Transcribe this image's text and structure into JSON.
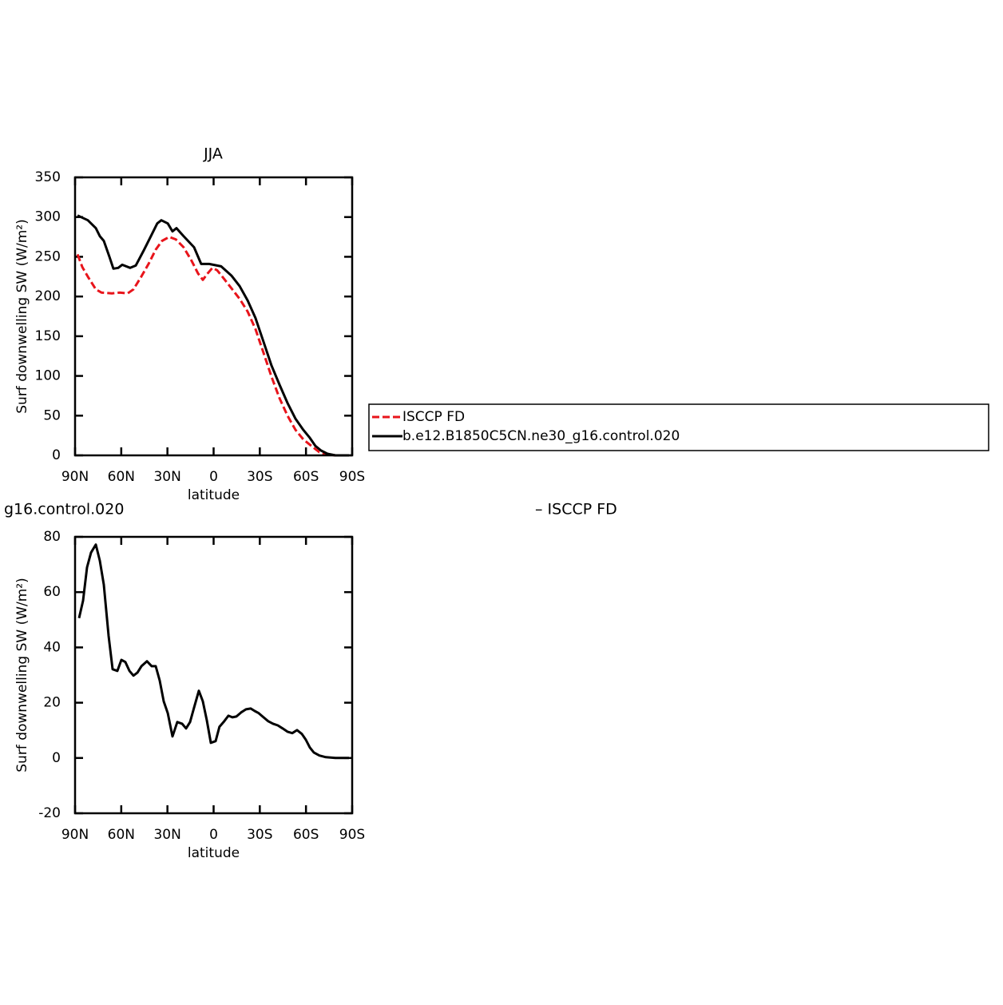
{
  "chart_data": [
    {
      "type": "line",
      "title": "JJA",
      "ylabel": "Surf downwelling SW (W/m²)",
      "xlabel": "latitude",
      "xlim": [
        90,
        -90
      ],
      "xticks": [
        {
          "value": 90,
          "label": "90N"
        },
        {
          "value": 60,
          "label": "60N"
        },
        {
          "value": 30,
          "label": "30N"
        },
        0,
        {
          "value": -30,
          "label": "30S"
        },
        {
          "value": -60,
          "label": "60S"
        },
        {
          "value": -90,
          "label": "90S"
        }
      ],
      "ylim": [
        0,
        350
      ],
      "yticks": [
        0,
        50,
        100,
        150,
        200,
        250,
        300,
        350
      ],
      "legend": true,
      "series": [
        {
          "name": "ISCCP FD",
          "color": "#e8141b",
          "dash": true,
          "x": [
            88.4,
            85.3,
            81.7,
            76.5,
            72.9,
            66.1,
            60.9,
            55.8,
            52.1,
            47,
            42.3,
            37.6,
            33.5,
            28.8,
            24.6,
            19.5,
            14.3,
            10.1,
            7,
            3.9,
            0.8,
            -2.3,
            -6.5,
            -11.7,
            -16.9,
            -22.1,
            -27.2,
            -32.4,
            -37.6,
            -42.8,
            -48,
            -53.2,
            -58.3,
            -63.5,
            -68.7,
            -73.9,
            -79.1,
            -87.9
          ],
          "values": [
            253,
            237,
            225,
            209,
            205,
            204,
            205,
            204,
            209,
            225,
            241,
            259,
            270,
            275,
            272,
            262,
            245,
            229,
            221,
            229,
            236,
            233,
            223,
            210,
            197,
            181,
            159,
            129,
            99,
            72,
            50,
            32,
            20,
            12,
            4,
            1,
            0,
            0
          ]
        },
        {
          "name": "b.e12.B1850C5CN.ne30_g16.control.020",
          "color": "#000000",
          "dash": false,
          "x": [
            88.4,
            81.7,
            76.5,
            73.9,
            71.3,
            67.7,
            65.1,
            62,
            59.4,
            54.2,
            50.6,
            45.4,
            40.2,
            36.6,
            34,
            29.8,
            26.7,
            24.1,
            19.5,
            12.7,
            8.1,
            2.9,
            -4.9,
            -11.7,
            -16.9,
            -22.1,
            -27.2,
            -32.4,
            -37.6,
            -42.8,
            -48,
            -53.2,
            -58.3,
            -62.5,
            -66.1,
            -69.8,
            -73.9,
            -79.1,
            -87.9
          ],
          "values": [
            302,
            296,
            286,
            276,
            270,
            250,
            235,
            236,
            240,
            236,
            239,
            258,
            278,
            292,
            296,
            292,
            282,
            286,
            276,
            262,
            241,
            241,
            238,
            226,
            213,
            195,
            173,
            143,
            113,
            89,
            66,
            46,
            32,
            22,
            12,
            6,
            2,
            0,
            0
          ]
        }
      ]
    },
    {
      "type": "line",
      "title": [
        "g16.control.020",
        "– ISCCP FD"
      ],
      "ylabel": "Surf downwelling SW (W/m²)",
      "xlabel": "latitude",
      "xlim": [
        90,
        -90
      ],
      "xticks": [
        {
          "value": 90,
          "label": "90N"
        },
        {
          "value": 60,
          "label": "60N"
        },
        {
          "value": 30,
          "label": "30N"
        },
        0,
        {
          "value": -30,
          "label": "30S"
        },
        {
          "value": -60,
          "label": "60S"
        },
        {
          "value": -90,
          "label": "90S"
        }
      ],
      "ylim": [
        -20,
        80
      ],
      "yticks": [
        -20,
        0,
        20,
        40,
        60,
        80
      ],
      "legend": false,
      "series": [
        {
          "color": "#000000",
          "dash": false,
          "x": [
            87.4,
            84.8,
            82.2,
            79.6,
            76.5,
            73.9,
            71.3,
            68.2,
            65.6,
            62.5,
            59.9,
            57.3,
            54.7,
            52.1,
            49.5,
            46.9,
            43.3,
            40.2,
            37.6,
            35,
            32.4,
            29.8,
            26.7,
            23.6,
            20.5,
            17.9,
            15.3,
            12.7,
            9.6,
            7,
            4.4,
            1.8,
            -1.3,
            -3.8,
            -6.5,
            -9.6,
            -12.2,
            -14.8,
            -17.9,
            -21,
            -24.1,
            -26.7,
            -29.3,
            -32.4,
            -35.5,
            -38.6,
            -41.7,
            -44.8,
            -48,
            -51.1,
            -54.2,
            -57.3,
            -59.9,
            -62.5,
            -65.1,
            -68.7,
            -72.9,
            -79.1,
            -87.9
          ],
          "values": [
            50.6,
            56.9,
            69,
            74.3,
            77.2,
            71.4,
            62.7,
            44.2,
            32.1,
            31.5,
            35.5,
            34.7,
            31.5,
            29.8,
            30.9,
            33.2,
            35,
            33.2,
            33.2,
            28,
            20.5,
            16.2,
            7.8,
            13,
            12.4,
            10.7,
            13,
            18.2,
            24.3,
            20.5,
            13.6,
            5.5,
            6.1,
            11.3,
            13,
            15.3,
            14.7,
            15,
            16.5,
            17.6,
            17.9,
            17,
            16.2,
            14.7,
            13.3,
            12.4,
            11.8,
            10.7,
            9.5,
            9,
            10.1,
            8.7,
            6.6,
            3.8,
            2,
            0.9,
            0.3,
            0,
            0
          ]
        }
      ]
    }
  ]
}
